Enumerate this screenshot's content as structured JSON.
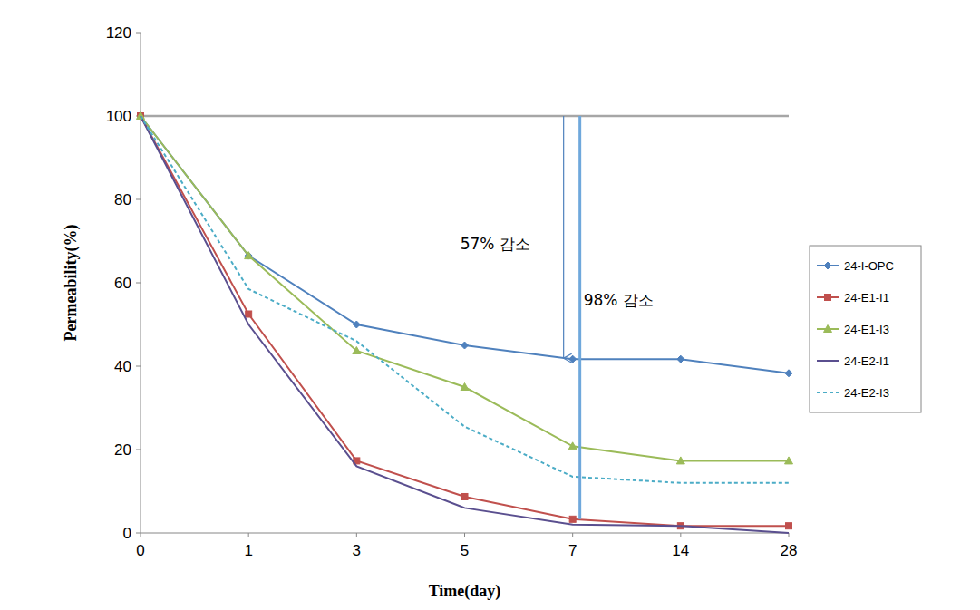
{
  "chart_data": {
    "type": "line",
    "x_label": "Time(day)",
    "y_label": "Permeability(%)",
    "categories": [
      "0",
      "1",
      "3",
      "5",
      "7",
      "14",
      "28"
    ],
    "ylim": [
      0,
      120
    ],
    "yticks": [
      0,
      20,
      40,
      60,
      80,
      100,
      120
    ],
    "grid": false,
    "legend": "right",
    "annotations": [
      {
        "text": "57% 감소"
      },
      {
        "text": "98% 감소"
      }
    ],
    "series": [
      {
        "name": "24-I-OPC",
        "color": "#4f81bd",
        "marker": "diamond",
        "line_style": "solid",
        "values": [
          100,
          66.5,
          50,
          45,
          41.7,
          41.7,
          38.3
        ]
      },
      {
        "name": "24-E1-I1",
        "color": "#c0504d",
        "marker": "square",
        "line_style": "solid",
        "values": [
          100,
          52.5,
          17.3,
          8.7,
          3.3,
          1.7,
          1.7
        ]
      },
      {
        "name": "24-E1-I3",
        "color": "#9bbb59",
        "marker": "triangle",
        "line_style": "solid",
        "values": [
          100,
          66.5,
          43.7,
          35,
          20.8,
          17.3,
          17.3
        ]
      },
      {
        "name": "24-E2-I1",
        "color": "#5a4f8f",
        "marker": "none",
        "line_style": "solid",
        "values": [
          100,
          50,
          16,
          6,
          2,
          1.7,
          0
        ]
      },
      {
        "name": "24-E2-I3",
        "color": "#4bacc6",
        "marker": "none",
        "line_style": "dashed",
        "values": [
          100,
          58.5,
          46,
          25.5,
          13.5,
          12,
          12
        ]
      }
    ]
  }
}
